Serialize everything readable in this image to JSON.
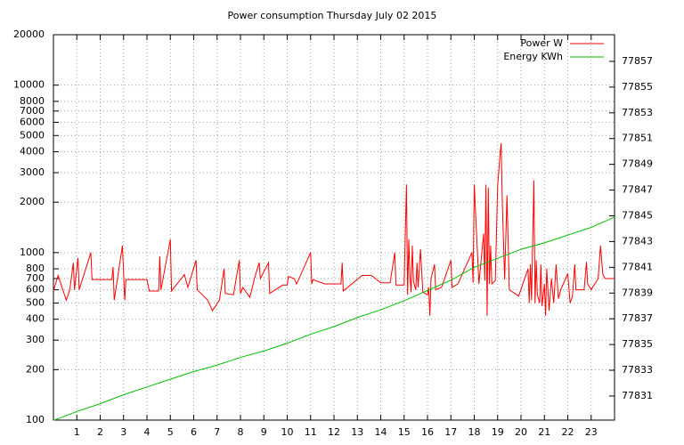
{
  "chart_data": {
    "type": "line",
    "title": "Power consumption Thursday July 02 2015",
    "xlim": [
      0,
      24
    ],
    "xticks": [
      1,
      2,
      3,
      4,
      5,
      6,
      7,
      8,
      9,
      10,
      11,
      12,
      13,
      14,
      15,
      16,
      17,
      18,
      19,
      20,
      21,
      22,
      23
    ],
    "ylim": [
      100,
      20000
    ],
    "ylog": true,
    "yticks": [
      100,
      200,
      300,
      400,
      500,
      600,
      700,
      800,
      1000,
      2000,
      3000,
      4000,
      5000,
      6000,
      7000,
      8000,
      10000,
      20000
    ],
    "y2lim": [
      77829.13,
      77859.07
    ],
    "y2ticks": [
      77831,
      77833,
      77835,
      77837,
      77839,
      77841,
      77843,
      77845,
      77847,
      77849,
      77851,
      77853,
      77855,
      77857
    ],
    "grid": true,
    "legend": "top-right",
    "series": [
      {
        "name": "Power W",
        "color": "#ff0000",
        "x": [
          0,
          0.2,
          0.55,
          0.7,
          0.85,
          0.9,
          1.05,
          1.1,
          1.6,
          1.65,
          2.5,
          2.55,
          2.6,
          2.95,
          3.05,
          3.1,
          4.0,
          4.1,
          4.5,
          4.55,
          4.6,
          5.0,
          5.05,
          5.6,
          5.75,
          6.1,
          6.15,
          6.6,
          6.8,
          7.1,
          7.3,
          7.35,
          7.7,
          7.95,
          8.0,
          8.1,
          8.4,
          8.6,
          8.8,
          8.85,
          9.2,
          9.25,
          9.8,
          10.0,
          10.05,
          10.3,
          10.4,
          11.0,
          11.05,
          11.1,
          11.6,
          12.3,
          12.35,
          12.4,
          13.2,
          13.6,
          14.0,
          14.4,
          14.6,
          14.65,
          15.0,
          15.1,
          15.15,
          15.2,
          15.25,
          15.3,
          15.35,
          15.4,
          15.5,
          15.55,
          15.6,
          15.7,
          15.8,
          16.0,
          16.05,
          16.1,
          16.15,
          16.3,
          16.35,
          16.6,
          17.0,
          17.05,
          17.3,
          17.9,
          17.95,
          18.0,
          18.2,
          18.4,
          18.45,
          18.5,
          18.55,
          18.6,
          18.65,
          18.7,
          18.75,
          18.9,
          19.0,
          19.1,
          19.15,
          19.2,
          19.3,
          19.4,
          19.5,
          19.9,
          20.3,
          20.35,
          20.4,
          20.45,
          20.55,
          20.6,
          20.65,
          20.7,
          20.8,
          20.85,
          20.9,
          21.0,
          21.05,
          21.1,
          21.2,
          21.3,
          21.4,
          21.5,
          21.6,
          21.7,
          22.0,
          22.1,
          22.2,
          22.3,
          22.35,
          22.7,
          22.8,
          22.85,
          23.0,
          23.3,
          23.4,
          23.5,
          23.6,
          24
        ],
        "values": [
          590,
          730,
          520,
          600,
          870,
          600,
          930,
          600,
          1000,
          690,
          690,
          820,
          520,
          1100,
          520,
          690,
          690,
          590,
          590,
          950,
          600,
          1200,
          590,
          740,
          620,
          900,
          600,
          520,
          450,
          520,
          800,
          570,
          560,
          900,
          570,
          620,
          540,
          700,
          870,
          700,
          870,
          570,
          640,
          640,
          720,
          700,
          650,
          1000,
          650,
          690,
          650,
          650,
          870,
          590,
          730,
          730,
          660,
          660,
          1000,
          640,
          640,
          2550,
          560,
          1200,
          720,
          580,
          1100,
          670,
          600,
          870,
          620,
          1050,
          580,
          560,
          620,
          420,
          700,
          850,
          600,
          620,
          900,
          620,
          650,
          1000,
          660,
          2550,
          650,
          1300,
          680,
          2550,
          420,
          2450,
          650,
          1100,
          650,
          680,
          2500,
          3800,
          4500,
          2000,
          690,
          2200,
          600,
          550,
          800,
          500,
          850,
          520,
          2700,
          500,
          900,
          560,
          500,
          850,
          480,
          650,
          420,
          800,
          450,
          700,
          500,
          850,
          530,
          600,
          750,
          500,
          550,
          850,
          600,
          600,
          880,
          650,
          600,
          700,
          1100,
          740,
          700,
          700
        ]
      },
      {
        "name": "Energy KWh",
        "color": "#00c000",
        "axis": "y2",
        "x": [
          0,
          1,
          2,
          3,
          4,
          5,
          6,
          7,
          8,
          9,
          10,
          11,
          12,
          13,
          14,
          15,
          16,
          17,
          18,
          19,
          20,
          21,
          22,
          23,
          24
        ],
        "values": [
          77829.1,
          77829.8,
          77830.4,
          77831.1,
          77831.7,
          77832.3,
          77832.9,
          77833.4,
          77834.0,
          77834.5,
          77835.1,
          77835.8,
          77836.4,
          77837.1,
          77837.7,
          77838.4,
          77839.2,
          77840.0,
          77841.0,
          77841.7,
          77842.4,
          77842.9,
          77843.5,
          77844.1,
          77844.9
        ]
      }
    ]
  }
}
